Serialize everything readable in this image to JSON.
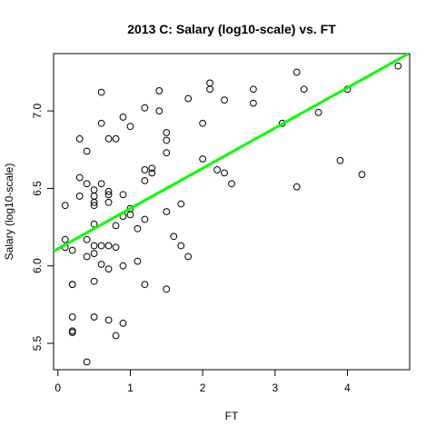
{
  "chart_data": {
    "type": "scatter",
    "title": "2013 C: Salary (log10-scale) vs. FT",
    "xlabel": "FT",
    "ylabel": "Salary (log10-scale)",
    "xlim": [
      -0.06,
      4.86
    ],
    "ylim": [
      5.33,
      7.37
    ],
    "x_ticks": [
      0,
      1,
      2,
      3,
      4
    ],
    "y_ticks": [
      5.5,
      6.0,
      6.5,
      7.0
    ],
    "x_tick_labels": [
      "0",
      "1",
      "2",
      "3",
      "4"
    ],
    "y_tick_labels": [
      "5.5",
      "6.0",
      "6.5",
      "7.0"
    ],
    "grid": false,
    "fit_line": {
      "intercept": 6.11,
      "slope": 0.26,
      "color": "#00ff00"
    },
    "point_color": "#000000",
    "points": [
      [
        0.1,
        6.39
      ],
      [
        0.1,
        6.17
      ],
      [
        0.1,
        6.12
      ],
      [
        0.2,
        6.1
      ],
      [
        0.2,
        5.88
      ],
      [
        0.2,
        5.88
      ],
      [
        0.2,
        5.67
      ],
      [
        0.2,
        5.58
      ],
      [
        0.2,
        5.57
      ],
      [
        0.3,
        6.82
      ],
      [
        0.3,
        6.57
      ],
      [
        0.3,
        6.45
      ],
      [
        0.4,
        6.74
      ],
      [
        0.4,
        6.53
      ],
      [
        0.4,
        6.17
      ],
      [
        0.4,
        6.06
      ],
      [
        0.4,
        5.38
      ],
      [
        0.5,
        6.49
      ],
      [
        0.5,
        6.45
      ],
      [
        0.5,
        6.41
      ],
      [
        0.5,
        6.39
      ],
      [
        0.5,
        6.27
      ],
      [
        0.5,
        6.13
      ],
      [
        0.5,
        6.08
      ],
      [
        0.5,
        5.9
      ],
      [
        0.5,
        5.67
      ],
      [
        0.6,
        7.12
      ],
      [
        0.6,
        6.92
      ],
      [
        0.6,
        6.53
      ],
      [
        0.6,
        6.13
      ],
      [
        0.6,
        6.01
      ],
      [
        0.7,
        6.82
      ],
      [
        0.7,
        6.48
      ],
      [
        0.7,
        6.46
      ],
      [
        0.7,
        6.41
      ],
      [
        0.7,
        6.13
      ],
      [
        0.7,
        5.98
      ],
      [
        0.7,
        5.65
      ],
      [
        0.8,
        6.82
      ],
      [
        0.8,
        6.26
      ],
      [
        0.8,
        6.12
      ],
      [
        0.8,
        5.55
      ],
      [
        0.9,
        6.96
      ],
      [
        0.9,
        6.46
      ],
      [
        0.9,
        6.32
      ],
      [
        0.9,
        6.0
      ],
      [
        0.9,
        5.63
      ],
      [
        1.0,
        6.9
      ],
      [
        1.0,
        6.37
      ],
      [
        1.0,
        6.33
      ],
      [
        1.1,
        6.24
      ],
      [
        1.1,
        6.03
      ],
      [
        1.2,
        7.02
      ],
      [
        1.2,
        6.62
      ],
      [
        1.2,
        6.55
      ],
      [
        1.2,
        6.3
      ],
      [
        1.2,
        5.88
      ],
      [
        1.3,
        6.63
      ],
      [
        1.3,
        6.6
      ],
      [
        1.4,
        7.13
      ],
      [
        1.4,
        7.0
      ],
      [
        1.5,
        6.86
      ],
      [
        1.5,
        6.81
      ],
      [
        1.5,
        6.73
      ],
      [
        1.5,
        6.35
      ],
      [
        1.5,
        5.85
      ],
      [
        1.6,
        6.19
      ],
      [
        1.7,
        6.4
      ],
      [
        1.7,
        6.13
      ],
      [
        1.8,
        7.08
      ],
      [
        1.8,
        6.06
      ],
      [
        2.0,
        6.92
      ],
      [
        2.0,
        6.69
      ],
      [
        2.1,
        7.18
      ],
      [
        2.1,
        7.14
      ],
      [
        2.2,
        6.62
      ],
      [
        2.3,
        7.07
      ],
      [
        2.3,
        6.6
      ],
      [
        2.4,
        6.53
      ],
      [
        2.7,
        7.14
      ],
      [
        2.7,
        7.05
      ],
      [
        3.1,
        6.92
      ],
      [
        3.3,
        7.25
      ],
      [
        3.3,
        6.51
      ],
      [
        3.4,
        7.14
      ],
      [
        3.6,
        6.99
      ],
      [
        3.9,
        6.68
      ],
      [
        4.0,
        7.14
      ],
      [
        4.2,
        6.59
      ],
      [
        4.7,
        7.29
      ]
    ]
  }
}
